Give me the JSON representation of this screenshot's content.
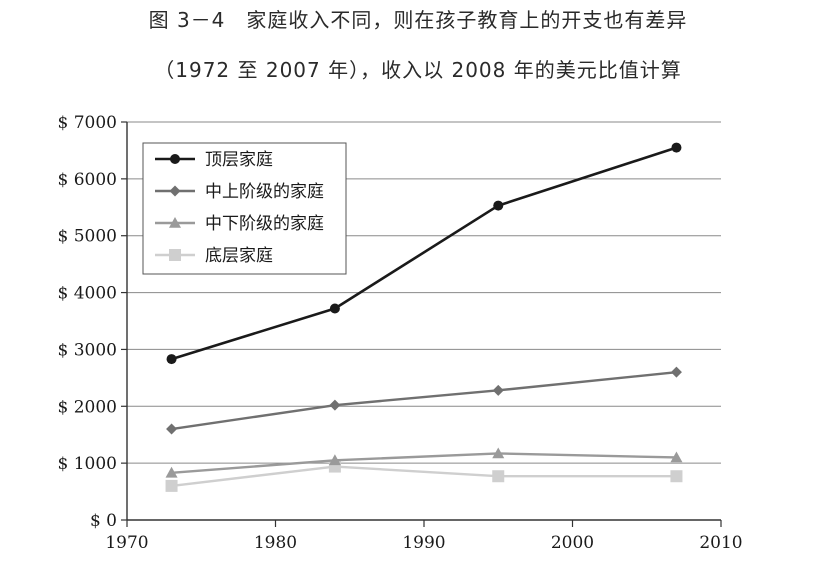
{
  "title": "图 3－4　家庭收入不同，则在孩子教育上的开支也有差异",
  "subtitle": "（1972 至 2007 年），收入以 2008 年的美元比值计算",
  "chart_data": {
    "type": "line",
    "title": "图 3－4　家庭收入不同，则在孩子教育上的开支也有差异",
    "subtitle": "（1972 至 2007 年），收入以 2008 年的美元比值计算",
    "x": [
      1973,
      1984,
      1995,
      2007
    ],
    "xlim": [
      1970,
      2010
    ],
    "ylim": [
      0,
      7000
    ],
    "x_ticks": [
      1970,
      1980,
      1990,
      2000,
      2010
    ],
    "y_ticks": [
      0,
      1000,
      2000,
      3000,
      4000,
      5000,
      6000,
      7000
    ],
    "y_tick_labels": [
      "$ 0",
      "$ 1000",
      "$ 2000",
      "$ 3000",
      "$ 4000",
      "$ 5000",
      "$ 6000",
      "$ 7000"
    ],
    "grid": "horizontal",
    "legend_position": "top-left",
    "series": [
      {
        "name": "顶层家庭",
        "values": [
          2830,
          3720,
          5530,
          6550
        ],
        "color": "#1a1a1a",
        "marker": "circle"
      },
      {
        "name": "中上阶级的家庭",
        "values": [
          1600,
          2020,
          2280,
          2600
        ],
        "color": "#707070",
        "marker": "diamond"
      },
      {
        "name": "中下阶级的家庭",
        "values": [
          830,
          1050,
          1170,
          1100
        ],
        "color": "#9a9a9a",
        "marker": "triangle"
      },
      {
        "name": "底层家庭",
        "values": [
          600,
          940,
          770,
          770
        ],
        "color": "#cfcfcf",
        "marker": "square"
      }
    ]
  }
}
